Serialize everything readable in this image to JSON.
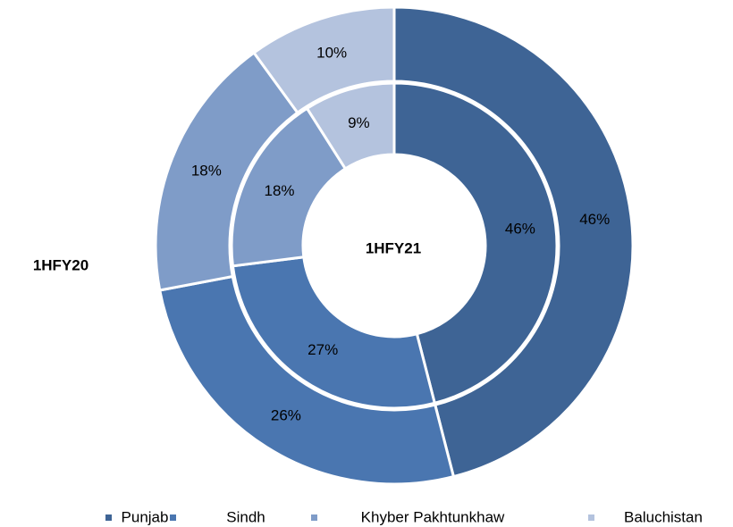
{
  "chart_data": {
    "type": "donut",
    "categories": [
      "Punjab",
      "Sindh",
      "Khyber Pakhtunkhaw",
      "Baluchistan"
    ],
    "colors": [
      "#3e6495",
      "#4a76b0",
      "#7f9cc8",
      "#b4c3de"
    ],
    "series": [
      {
        "name": "1HFY20",
        "values": [
          46,
          26,
          18,
          10
        ],
        "value_labels": [
          "46%",
          "26%",
          "18%",
          "10%"
        ]
      },
      {
        "name": "1HFY21",
        "values": [
          46,
          27,
          18,
          9
        ],
        "value_labels": [
          "46%",
          "27%",
          "18%",
          "9%"
        ]
      }
    ]
  }
}
